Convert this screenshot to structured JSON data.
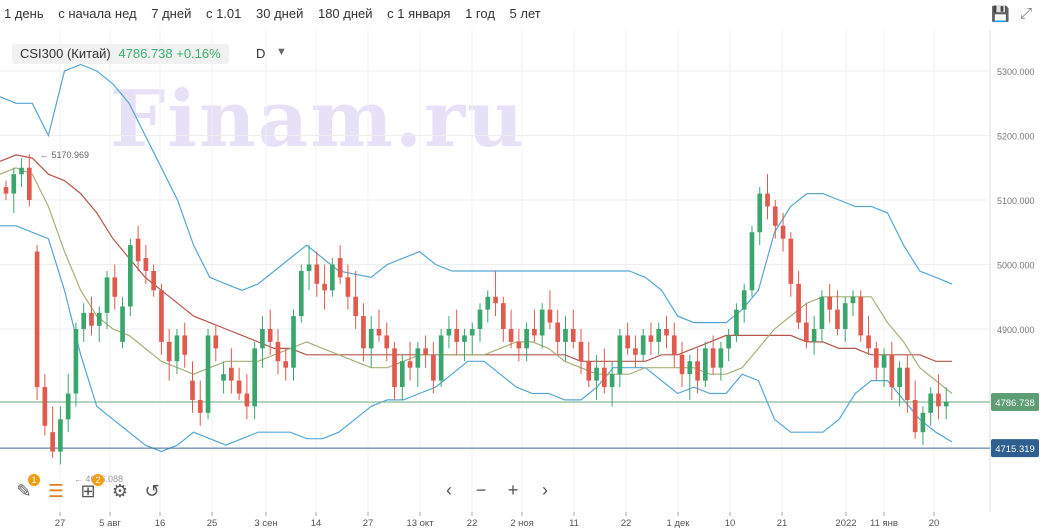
{
  "periods": [
    "1 день",
    "с начала нед",
    "7 дней",
    "с 1.01",
    "30 дней",
    "180 дней",
    "с 1 января",
    "1 год",
    "5 лет"
  ],
  "legend": {
    "name": "CSI300 (Китай)",
    "value": "4786.738 +0.16%",
    "interval": "D"
  },
  "watermark": "Finam.ru",
  "colors": {
    "up": "#3aa66e",
    "down": "#e05a4e",
    "bb": "#56a7d3",
    "ma_short": "#a8b07a",
    "ma_long": "#b4574c",
    "hline_green": "#6aa97f",
    "hline_blue": "#3e6c9c",
    "label_green": "#5d9e75",
    "label_blue": "#2f5f8f"
  },
  "chart_data": {
    "type": "candlestick",
    "y_ticks": [
      5300,
      5200,
      5100,
      5000,
      4900
    ],
    "y_tick_labels": [
      "5300.000",
      "5200.000",
      "5100.000",
      "5000.000",
      "4900.000"
    ],
    "ylim": [
      4660,
      5340
    ],
    "x_labels": [
      "27",
      "5 авг",
      "16",
      "25",
      "3 сен",
      "14",
      "27",
      "13 окт",
      "22",
      "2 ноя",
      "11",
      "22",
      "1 дек",
      "10",
      "21",
      "2022",
      "11 янв",
      "20"
    ],
    "price_labels": [
      "4786.738",
      "4715.319"
    ],
    "annotations": {
      "high": "5170.969",
      "low": "4656.088"
    },
    "hlines": [
      4786.738,
      4715.319
    ],
    "candles": [
      [
        5120,
        5130,
        5100,
        5110
      ],
      [
        5110,
        5150,
        5080,
        5140
      ],
      [
        5140,
        5165,
        5120,
        5150
      ],
      [
        5150,
        5171,
        5090,
        5100
      ],
      [
        5020,
        5030,
        4790,
        4810
      ],
      [
        4810,
        4830,
        4735,
        4750
      ],
      [
        4740,
        4780,
        4700,
        4710
      ],
      [
        4710,
        4780,
        4690,
        4760
      ],
      [
        4760,
        4830,
        4740,
        4800
      ],
      [
        4800,
        4910,
        4780,
        4900
      ],
      [
        4900,
        4940,
        4880,
        4925
      ],
      [
        4925,
        4950,
        4890,
        4905
      ],
      [
        4905,
        4935,
        4880,
        4925
      ],
      [
        4925,
        4990,
        4900,
        4980
      ],
      [
        4980,
        5000,
        4930,
        4950
      ],
      [
        4880,
        4950,
        4870,
        4935
      ],
      [
        4935,
        5040,
        4920,
        5030
      ],
      [
        5040,
        5060,
        4990,
        5005
      ],
      [
        5010,
        5030,
        4970,
        4990
      ],
      [
        4990,
        5000,
        4950,
        4960
      ],
      [
        4960,
        4970,
        4860,
        4880
      ],
      [
        4880,
        4900,
        4820,
        4850
      ],
      [
        4850,
        4900,
        4830,
        4890
      ],
      [
        4890,
        4910,
        4840,
        4860
      ],
      [
        4820,
        4850,
        4770,
        4790
      ],
      [
        4790,
        4820,
        4750,
        4770
      ],
      [
        4770,
        4900,
        4760,
        4890
      ],
      [
        4890,
        4905,
        4850,
        4870
      ],
      [
        4820,
        4850,
        4800,
        4830
      ],
      [
        4840,
        4870,
        4800,
        4820
      ],
      [
        4820,
        4840,
        4790,
        4800
      ],
      [
        4800,
        4830,
        4760,
        4780
      ],
      [
        4780,
        4880,
        4760,
        4870
      ],
      [
        4870,
        4920,
        4840,
        4900
      ],
      [
        4900,
        4930,
        4860,
        4880
      ],
      [
        4880,
        4900,
        4830,
        4850
      ],
      [
        4850,
        4870,
        4820,
        4840
      ],
      [
        4840,
        4930,
        4820,
        4920
      ],
      [
        4920,
        5000,
        4910,
        4990
      ],
      [
        4990,
        5030,
        4960,
        5000
      ],
      [
        5000,
        5020,
        4950,
        4970
      ],
      [
        4970,
        5000,
        4930,
        4960
      ],
      [
        4960,
        5010,
        4950,
        5000
      ],
      [
        5010,
        5030,
        4970,
        4980
      ],
      [
        4980,
        5000,
        4930,
        4950
      ],
      [
        4950,
        4990,
        4900,
        4920
      ],
      [
        4920,
        4940,
        4850,
        4870
      ],
      [
        4870,
        4920,
        4840,
        4900
      ],
      [
        4900,
        4930,
        4880,
        4890
      ],
      [
        4890,
        4910,
        4850,
        4870
      ],
      [
        4870,
        4880,
        4790,
        4810
      ],
      [
        4810,
        4860,
        4790,
        4850
      ],
      [
        4850,
        4880,
        4820,
        4840
      ],
      [
        4840,
        4880,
        4810,
        4870
      ],
      [
        4870,
        4890,
        4840,
        4860
      ],
      [
        4860,
        4880,
        4800,
        4820
      ],
      [
        4820,
        4900,
        4810,
        4890
      ],
      [
        4890,
        4920,
        4870,
        4900
      ],
      [
        4900,
        4930,
        4860,
        4880
      ],
      [
        4880,
        4900,
        4850,
        4890
      ],
      [
        4890,
        4910,
        4860,
        4900
      ],
      [
        4900,
        4940,
        4880,
        4930
      ],
      [
        4930,
        4960,
        4910,
        4950
      ],
      [
        4950,
        4990,
        4920,
        4940
      ],
      [
        4940,
        4950,
        4880,
        4900
      ],
      [
        4900,
        4930,
        4870,
        4880
      ],
      [
        4880,
        4900,
        4850,
        4870
      ],
      [
        4870,
        4910,
        4850,
        4900
      ],
      [
        4900,
        4930,
        4880,
        4890
      ],
      [
        4890,
        4940,
        4870,
        4930
      ],
      [
        4930,
        4960,
        4900,
        4910
      ],
      [
        4910,
        4930,
        4860,
        4880
      ],
      [
        4880,
        4920,
        4850,
        4900
      ],
      [
        4900,
        4930,
        4870,
        4880
      ],
      [
        4880,
        4900,
        4830,
        4850
      ],
      [
        4850,
        4880,
        4810,
        4820
      ],
      [
        4820,
        4860,
        4790,
        4840
      ],
      [
        4840,
        4870,
        4800,
        4810
      ],
      [
        4810,
        4850,
        4780,
        4830
      ],
      [
        4830,
        4900,
        4810,
        4890
      ],
      [
        4890,
        4910,
        4860,
        4870
      ],
      [
        4870,
        4890,
        4840,
        4860
      ],
      [
        4860,
        4900,
        4850,
        4890
      ],
      [
        4890,
        4910,
        4860,
        4880
      ],
      [
        4880,
        4910,
        4860,
        4900
      ],
      [
        4900,
        4920,
        4870,
        4890
      ],
      [
        4890,
        4910,
        4840,
        4860
      ],
      [
        4860,
        4880,
        4810,
        4830
      ],
      [
        4830,
        4860,
        4790,
        4850
      ],
      [
        4850,
        4870,
        4800,
        4820
      ],
      [
        4820,
        4880,
        4810,
        4870
      ],
      [
        4870,
        4890,
        4830,
        4840
      ],
      [
        4840,
        4880,
        4820,
        4870
      ],
      [
        4870,
        4900,
        4850,
        4890
      ],
      [
        4890,
        4940,
        4880,
        4930
      ],
      [
        4930,
        4970,
        4910,
        4960
      ],
      [
        4960,
        5060,
        4950,
        5050
      ],
      [
        5050,
        5120,
        5030,
        5110
      ],
      [
        5110,
        5140,
        5070,
        5090
      ],
      [
        5090,
        5100,
        5040,
        5060
      ],
      [
        5060,
        5080,
        5020,
        5040
      ],
      [
        5040,
        5050,
        4950,
        4970
      ],
      [
        4970,
        4990,
        4900,
        4910
      ],
      [
        4910,
        4940,
        4870,
        4880
      ],
      [
        4880,
        4920,
        4860,
        4900
      ],
      [
        4900,
        4960,
        4880,
        4950
      ],
      [
        4950,
        4970,
        4910,
        4930
      ],
      [
        4930,
        4960,
        4890,
        4900
      ],
      [
        4900,
        4950,
        4880,
        4940
      ],
      [
        4940,
        4960,
        4920,
        4950
      ],
      [
        4950,
        4960,
        4880,
        4890
      ],
      [
        4890,
        4920,
        4860,
        4870
      ],
      [
        4870,
        4880,
        4820,
        4840
      ],
      [
        4840,
        4870,
        4810,
        4860
      ],
      [
        4860,
        4880,
        4790,
        4810
      ],
      [
        4810,
        4850,
        4780,
        4840
      ],
      [
        4840,
        4860,
        4770,
        4790
      ],
      [
        4790,
        4820,
        4730,
        4740
      ],
      [
        4740,
        4780,
        4720,
        4770
      ],
      [
        4770,
        4810,
        4750,
        4800
      ],
      [
        4800,
        4830,
        4760,
        4780
      ],
      [
        4780,
        4810,
        4760,
        4787
      ]
    ],
    "bb_upper": [
      5260,
      5250,
      5250,
      5200,
      5300,
      5310,
      5300,
      5280,
      5250,
      5200,
      5150,
      5100,
      5030,
      4980,
      4970,
      4960,
      4970,
      4990,
      5010,
      5030,
      5010,
      4990,
      4985,
      4980,
      5000,
      5010,
      5020,
      5000,
      4990,
      4990,
      4990,
      4990,
      4990,
      4990,
      4990,
      4990,
      4990,
      4990,
      4990,
      4990,
      4980,
      4960,
      4920,
      4910,
      4910,
      4910,
      4930,
      4960,
      5050,
      5090,
      5110,
      5110,
      5100,
      5090,
      5090,
      5080,
      5030,
      4990,
      4980,
      4970
    ],
    "bb_lower": [
      5060,
      5060,
      5050,
      5040,
      4960,
      4860,
      4780,
      4760,
      4740,
      4720,
      4710,
      4720,
      4740,
      4730,
      4720,
      4730,
      4740,
      4740,
      4740,
      4730,
      4730,
      4740,
      4760,
      4780,
      4790,
      4790,
      4800,
      4810,
      4830,
      4850,
      4850,
      4830,
      4810,
      4800,
      4800,
      4790,
      4790,
      4810,
      4840,
      4840,
      4840,
      4820,
      4800,
      4810,
      4800,
      4800,
      4830,
      4820,
      4760,
      4740,
      4740,
      4740,
      4760,
      4800,
      4820,
      4820,
      4790,
      4760,
      4740,
      4725
    ],
    "ma_long": [
      5160,
      5170,
      5165,
      5140,
      5130,
      5110,
      5080,
      5040,
      5010,
      4980,
      4960,
      4940,
      4920,
      4910,
      4900,
      4890,
      4880,
      4870,
      4870,
      4860,
      4860,
      4860,
      4860,
      4860,
      4860,
      4860,
      4860,
      4860,
      4860,
      4860,
      4860,
      4860,
      4860,
      4860,
      4860,
      4860,
      4850,
      4850,
      4850,
      4850,
      4850,
      4860,
      4860,
      4870,
      4880,
      4890,
      4890,
      4890,
      4890,
      4890,
      4880,
      4880,
      4870,
      4870,
      4860,
      4860,
      4860,
      4860,
      4850,
      4850
    ],
    "ma_short": [
      5140,
      5150,
      5140,
      5090,
      5020,
      4960,
      4920,
      4900,
      4890,
      4870,
      4850,
      4840,
      4830,
      4840,
      4850,
      4850,
      4850,
      4860,
      4870,
      4880,
      4870,
      4860,
      4850,
      4840,
      4840,
      4850,
      4860,
      4860,
      4860,
      4860,
      4860,
      4870,
      4880,
      4880,
      4870,
      4850,
      4840,
      4830,
      4830,
      4830,
      4840,
      4840,
      4840,
      4840,
      4830,
      4830,
      4840,
      4870,
      4900,
      4920,
      4940,
      4950,
      4950,
      4950,
      4950,
      4910,
      4880,
      4840,
      4820,
      4800
    ]
  },
  "toolbar": {
    "tools": [
      "pencil-icon",
      "list-icon",
      "add-indicator-icon",
      "settings-icon",
      "undo-icon"
    ],
    "badges": [
      "1",
      "2"
    ]
  },
  "nav": {
    "prev": "‹",
    "zoom_out": "−",
    "zoom_in": "+",
    "next": "›"
  }
}
